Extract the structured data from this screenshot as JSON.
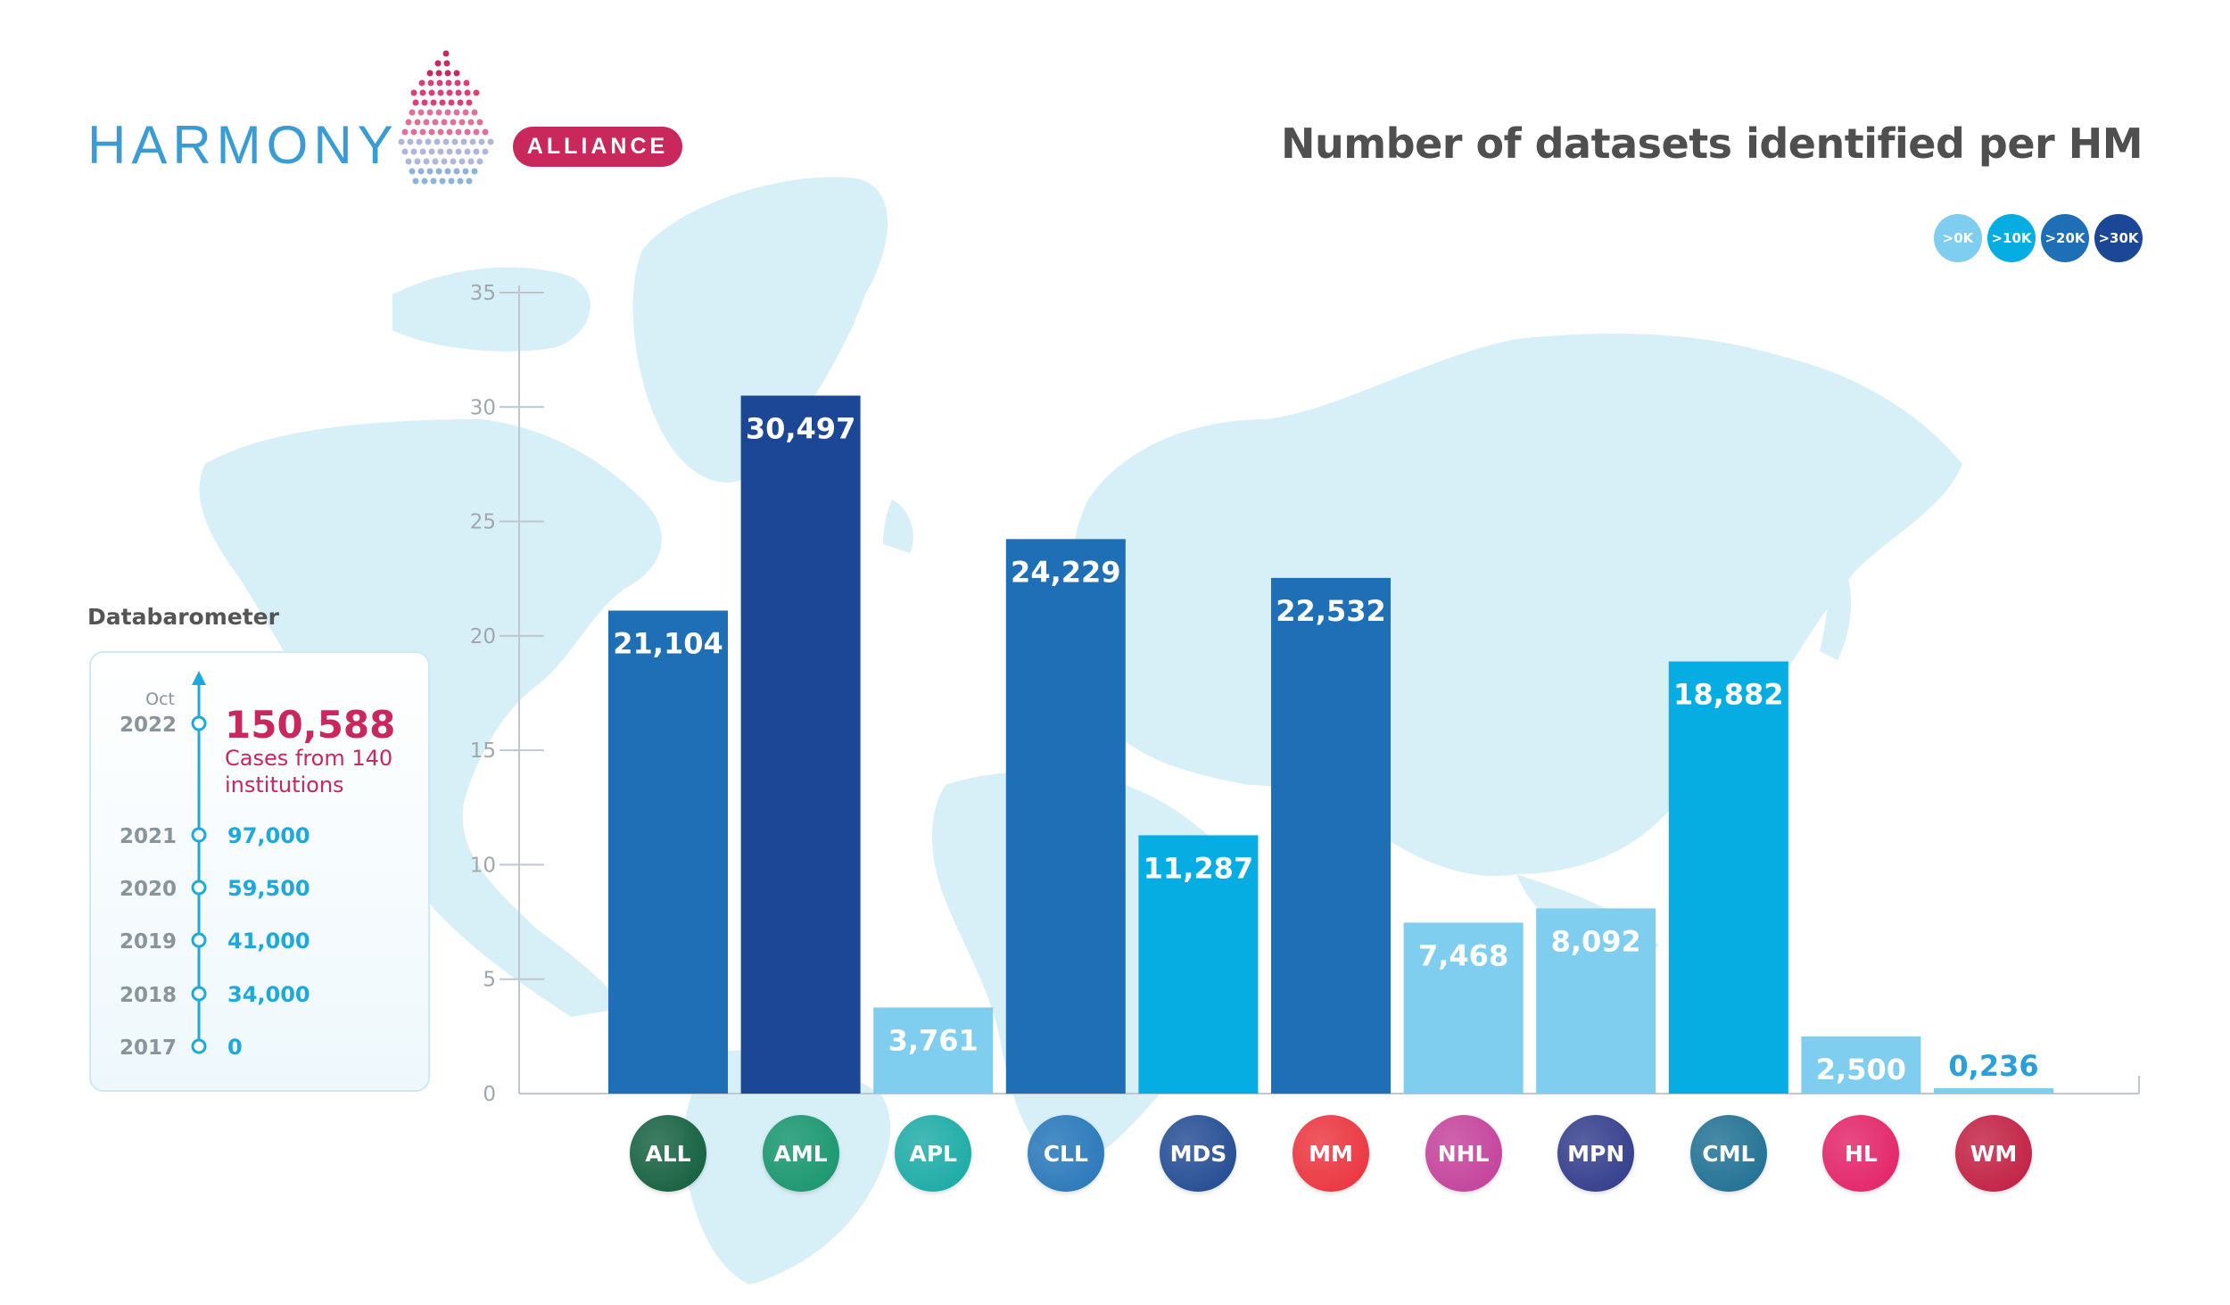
{
  "brand": {
    "name": "HARMONY",
    "badge": "ALLIANCE"
  },
  "title": "Number of datasets identified per HM",
  "legend": [
    {
      "label": ">0K",
      "color": "#7fcdef"
    },
    {
      "label": ">10K",
      "color": "#05ade3"
    },
    {
      "label": ">20K",
      "color": "#1f6fb6"
    },
    {
      "label": ">30K",
      "color": "#1c4696"
    }
  ],
  "databarometer": {
    "title": "Databarometer",
    "current": {
      "month": "Oct",
      "year": "2022",
      "value": "150,588",
      "caption_line1": "Cases from 140",
      "caption_line2": "institutions"
    },
    "history": [
      {
        "year": "2021",
        "value": "97,000"
      },
      {
        "year": "2020",
        "value": "59,500"
      },
      {
        "year": "2019",
        "value": "41,000"
      },
      {
        "year": "2018",
        "value": "34,000"
      },
      {
        "year": "2017",
        "value": "0"
      }
    ]
  },
  "chart_data": {
    "type": "bar",
    "title": "Number of datasets identified per HM",
    "ylim": [
      0,
      35
    ],
    "yticks": [
      0,
      5,
      10,
      15,
      20,
      25,
      30,
      35
    ],
    "categories": [
      "ALL",
      "AML",
      "APL",
      "CLL",
      "MDS",
      "MM",
      "NHL",
      "MPN",
      "CML",
      "HL",
      "WM"
    ],
    "values": [
      21.104,
      30.497,
      3.761,
      24.229,
      11.287,
      22.532,
      7.468,
      8.092,
      18.882,
      2.5,
      0.236
    ],
    "value_labels": [
      "21,104",
      "30,497",
      "3,761",
      "24,229",
      "11,287",
      "22,532",
      "7,468",
      "8,092",
      "18,882",
      "2,500",
      "0,236"
    ],
    "bar_colors": [
      "#1f6fb6",
      "#1c4696",
      "#7fcdef",
      "#1f6fb6",
      "#05ade3",
      "#1f6fb6",
      "#7fcdef",
      "#7fcdef",
      "#05ade3",
      "#7fcdef",
      "#7fcdef"
    ],
    "category_colors": [
      "#0f5c3a",
      "#16946a",
      "#15a8a3",
      "#2474b8",
      "#1e4790",
      "#ea2f3a",
      "#c23c98",
      "#2d3888",
      "#1a6c90",
      "#e21d63",
      "#c01a3e"
    ],
    "grid": false,
    "legend_position": "top-right"
  }
}
